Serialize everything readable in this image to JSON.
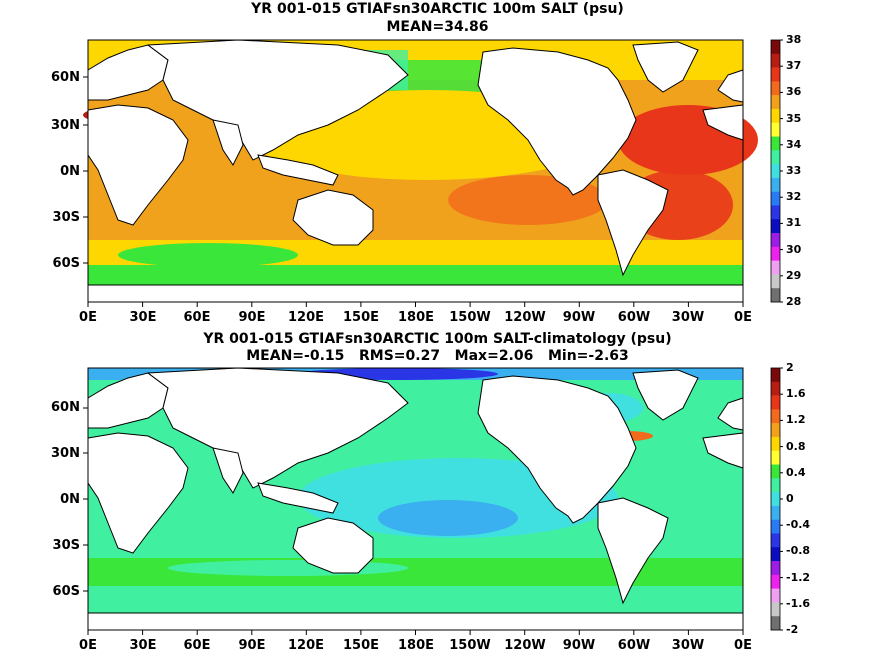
{
  "panels": [
    {
      "title": "YR 001-015 GTIAFsn30ARCTIC 100m SALT (psu)",
      "subtitle": "MEAN=34.86",
      "colorbar": {
        "labels": [
          "38",
          "37",
          "36",
          "35",
          "34",
          "33",
          "32",
          "31",
          "30",
          "29",
          "28"
        ],
        "colors": [
          "#7a0a0a",
          "#b81d12",
          "#e8361b",
          "#f26a1c",
          "#f0a21c",
          "#ffd700",
          "#ffff33",
          "#3be63b",
          "#40f0a0",
          "#40e0e0",
          "#3ab0f0",
          "#2a7af5",
          "#2a35e5",
          "#0c0cc0",
          "#9b1ee6",
          "#ee22ee",
          "#f0a0f0",
          "#c8c8c8",
          "#707070"
        ]
      }
    },
    {
      "title": "YR 001-015 GTIAFsn30ARCTIC 100m SALT-climatology (psu)",
      "subtitle": "MEAN=-0.15   RMS=0.27   Max=2.06   Min=-2.63",
      "colorbar": {
        "labels": [
          "2",
          "1.6",
          "1.2",
          "0.8",
          "0.4",
          "0",
          "-0.4",
          "-0.8",
          "-1.2",
          "-1.6",
          "-2"
        ],
        "colors": [
          "#7a0a0a",
          "#b81d12",
          "#e8361b",
          "#f26a1c",
          "#f0a21c",
          "#ffd700",
          "#ffff33",
          "#3be63b",
          "#40f0a0",
          "#40e0e0",
          "#3ab0f0",
          "#2a7af5",
          "#2a35e5",
          "#0c0cc0",
          "#9b1ee6",
          "#ee22ee",
          "#f0a0f0",
          "#c8c8c8",
          "#707070"
        ]
      }
    }
  ],
  "lat_labels": [
    "60N",
    "30N",
    "0N",
    "30S",
    "60S"
  ],
  "lon_labels": [
    "0E",
    "30E",
    "60E",
    "90E",
    "120E",
    "150E",
    "180E",
    "150W",
    "120W",
    "90W",
    "60W",
    "30W",
    "0E"
  ]
}
